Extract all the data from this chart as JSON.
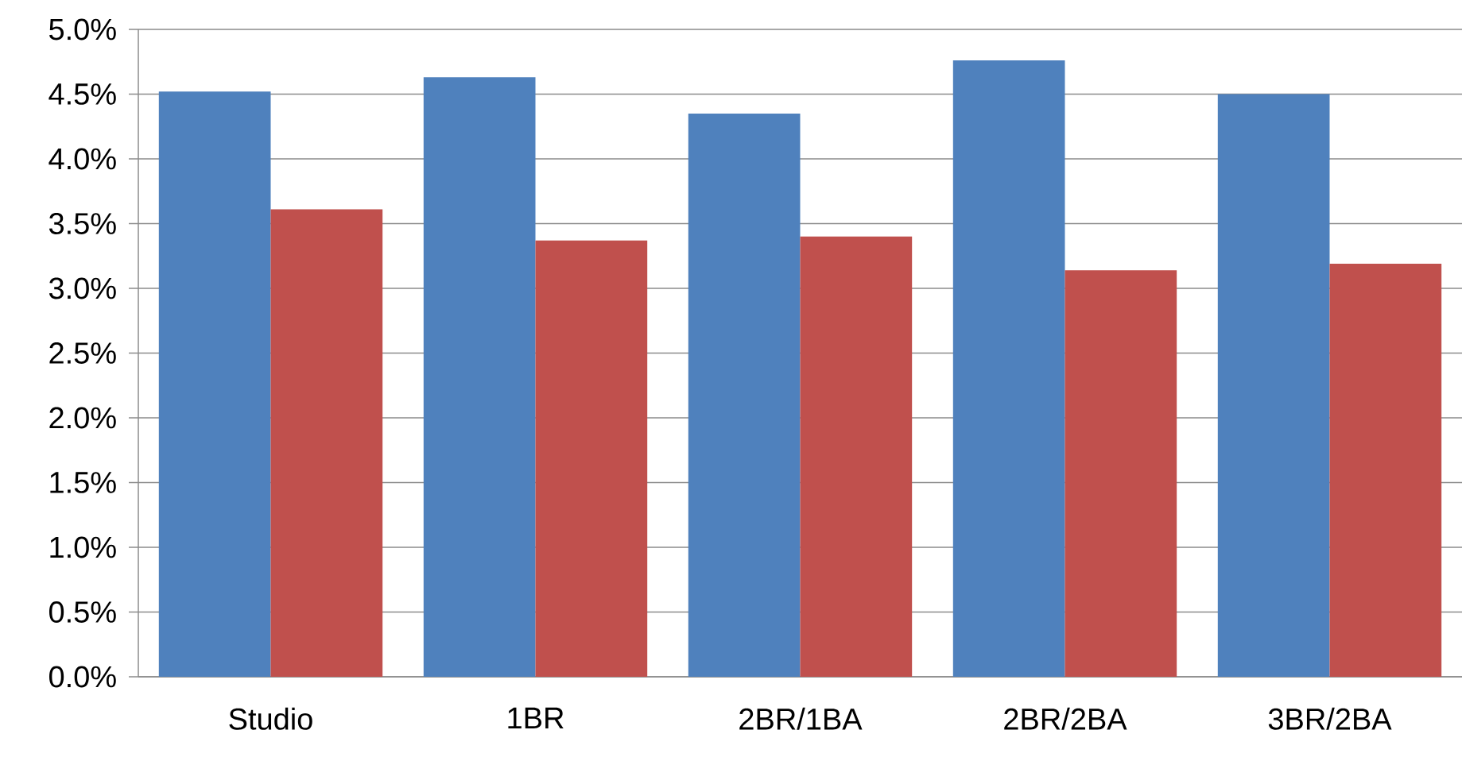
{
  "chart_data": {
    "type": "bar",
    "categories": [
      "Studio",
      "1BR",
      "2BR/1BA",
      "2BR/2BA",
      "3BR/2BA"
    ],
    "series": [
      {
        "color": "#4f81bd",
        "values": [
          4.52,
          4.63,
          4.35,
          4.76,
          4.5
        ]
      },
      {
        "color": "#c0504d",
        "values": [
          3.61,
          3.37,
          3.4,
          3.14,
          3.19
        ]
      }
    ],
    "ylim": [
      0,
      5
    ],
    "yticks": [
      {
        "value": 0,
        "label": "0.0%"
      },
      {
        "value": 0.5,
        "label": "0.5%"
      },
      {
        "value": 1,
        "label": "1.0%"
      },
      {
        "value": 1.5,
        "label": "1.5%"
      },
      {
        "value": 2,
        "label": "2.0%"
      },
      {
        "value": 2.5,
        "label": "2.5%"
      },
      {
        "value": 3,
        "label": "3.0%"
      },
      {
        "value": 3.5,
        "label": "3.5%"
      },
      {
        "value": 4,
        "label": "4.0%"
      },
      {
        "value": 4.5,
        "label": "4.5%"
      },
      {
        "value": 5,
        "label": "5.0%"
      }
    ],
    "grid": "y"
  }
}
